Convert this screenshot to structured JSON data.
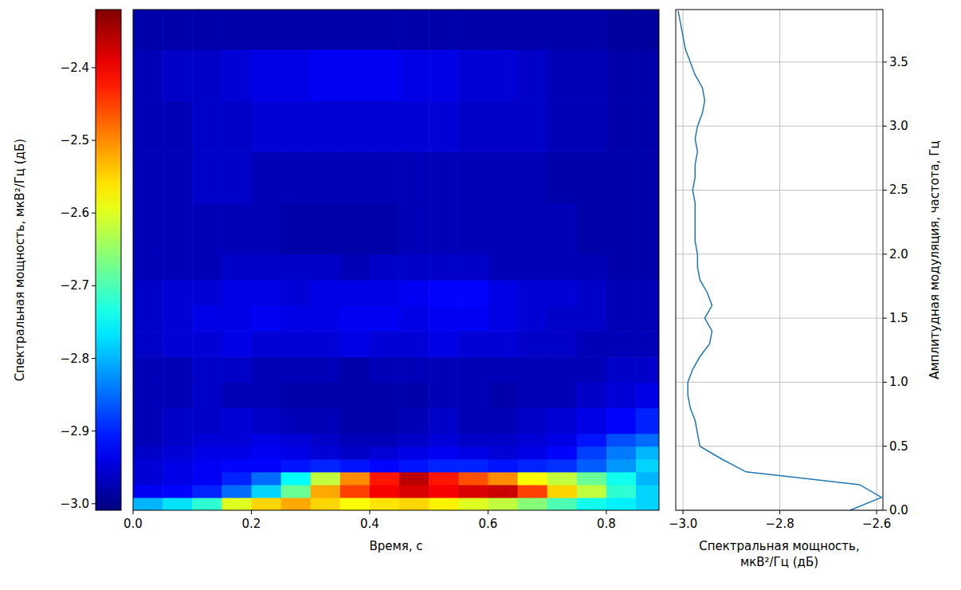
{
  "chart_data": [
    {
      "type": "heatmap",
      "x_label": "Время, с",
      "xlim": [
        0,
        0.889
      ],
      "ylim": [
        0,
        3.91
      ],
      "xticks": [
        {
          "value": 0,
          "label": "0.0"
        },
        0.2,
        0.4,
        0.6,
        0.8
      ],
      "tick_labels": "x",
      "x_bins": [
        0,
        0.05,
        0.1,
        0.15,
        0.2,
        0.25,
        0.3,
        0.35,
        0.4,
        0.45,
        0.5,
        0.55,
        0.6,
        0.65,
        0.7,
        0.75,
        0.8,
        0.85,
        0.889
      ],
      "y_bins": [
        0,
        0.1,
        0.2,
        0.3,
        0.4,
        0.5,
        0.6,
        0.8,
        1.0,
        1.2,
        1.4,
        1.6,
        1.8,
        2.0,
        2.4,
        2.8,
        3.2,
        3.6,
        3.91
      ],
      "cells": [
        [
          -2.8,
          -2.77,
          -2.72,
          -2.6,
          -2.55,
          -2.52,
          -2.55,
          -2.58,
          -2.56,
          -2.55,
          -2.57,
          -2.6,
          -2.62,
          -2.66,
          -2.7,
          -2.74,
          -2.76,
          -2.78
        ],
        [
          -2.93,
          -2.92,
          -2.9,
          -2.85,
          -2.78,
          -2.68,
          -2.52,
          -2.45,
          -2.4,
          -2.38,
          -2.4,
          -2.38,
          -2.37,
          -2.45,
          -2.55,
          -2.62,
          -2.72,
          -2.78
        ],
        [
          -2.95,
          -2.94,
          -2.93,
          -2.9,
          -2.85,
          -2.75,
          -2.62,
          -2.5,
          -2.42,
          -2.36,
          -2.42,
          -2.46,
          -2.5,
          -2.58,
          -2.62,
          -2.68,
          -2.74,
          -2.8
        ],
        [
          -2.95,
          -2.94,
          -2.93,
          -2.92,
          -2.92,
          -2.91,
          -2.9,
          -2.91,
          -2.92,
          -2.91,
          -2.9,
          -2.9,
          -2.91,
          -2.9,
          -2.89,
          -2.86,
          -2.82,
          -2.78
        ],
        [
          -2.96,
          -2.95,
          -2.94,
          -2.94,
          -2.93,
          -2.94,
          -2.95,
          -2.96,
          -2.95,
          -2.94,
          -2.93,
          -2.94,
          -2.95,
          -2.94,
          -2.92,
          -2.88,
          -2.84,
          -2.8
        ],
        [
          -2.97,
          -2.96,
          -2.95,
          -2.95,
          -2.94,
          -2.95,
          -2.96,
          -2.97,
          -2.97,
          -2.96,
          -2.95,
          -2.96,
          -2.96,
          -2.95,
          -2.94,
          -2.91,
          -2.87,
          -2.85
        ],
        [
          -2.97,
          -2.96,
          -2.96,
          -2.95,
          -2.96,
          -2.97,
          -2.97,
          -2.98,
          -2.98,
          -2.97,
          -2.96,
          -2.97,
          -2.97,
          -2.96,
          -2.95,
          -2.94,
          -2.92,
          -2.9
        ],
        [
          -2.97,
          -2.97,
          -2.96,
          -2.97,
          -2.97,
          -2.98,
          -2.98,
          -2.98,
          -2.98,
          -2.98,
          -2.97,
          -2.97,
          -2.98,
          -2.97,
          -2.97,
          -2.96,
          -2.95,
          -2.94
        ],
        [
          -2.97,
          -2.97,
          -2.96,
          -2.96,
          -2.97,
          -2.97,
          -2.97,
          -2.98,
          -2.97,
          -2.97,
          -2.97,
          -2.97,
          -2.97,
          -2.97,
          -2.97,
          -2.97,
          -2.96,
          -2.96
        ],
        [
          -2.96,
          -2.95,
          -2.95,
          -2.94,
          -2.95,
          -2.95,
          -2.95,
          -2.94,
          -2.95,
          -2.95,
          -2.94,
          -2.95,
          -2.95,
          -2.96,
          -2.96,
          -2.97,
          -2.97,
          -2.97
        ],
        [
          -2.96,
          -2.95,
          -2.94,
          -2.94,
          -2.93,
          -2.94,
          -2.94,
          -2.93,
          -2.93,
          -2.94,
          -2.93,
          -2.93,
          -2.94,
          -2.95,
          -2.96,
          -2.96,
          -2.97,
          -2.97
        ],
        [
          -2.96,
          -2.95,
          -2.95,
          -2.94,
          -2.94,
          -2.95,
          -2.94,
          -2.94,
          -2.94,
          -2.93,
          -2.92,
          -2.92,
          -2.94,
          -2.95,
          -2.95,
          -2.96,
          -2.97,
          -2.97
        ],
        [
          -2.97,
          -2.97,
          -2.97,
          -2.96,
          -2.96,
          -2.96,
          -2.96,
          -2.97,
          -2.96,
          -2.96,
          -2.96,
          -2.96,
          -2.97,
          -2.97,
          -2.97,
          -2.97,
          -2.98,
          -2.98
        ],
        [
          -2.97,
          -2.97,
          -2.97,
          -2.97,
          -2.97,
          -2.98,
          -2.98,
          -2.98,
          -2.98,
          -2.97,
          -2.97,
          -2.97,
          -2.97,
          -2.97,
          -2.97,
          -2.98,
          -2.98,
          -2.98
        ],
        [
          -2.97,
          -2.97,
          -2.96,
          -2.96,
          -2.97,
          -2.97,
          -2.97,
          -2.97,
          -2.97,
          -2.97,
          -2.97,
          -2.97,
          -2.97,
          -2.97,
          -2.98,
          -2.98,
          -2.98,
          -2.98
        ],
        [
          -2.97,
          -2.97,
          -2.96,
          -2.96,
          -2.95,
          -2.95,
          -2.95,
          -2.95,
          -2.95,
          -2.95,
          -2.95,
          -2.96,
          -2.96,
          -2.96,
          -2.97,
          -2.97,
          -2.98,
          -2.98
        ],
        [
          -2.97,
          -2.96,
          -2.96,
          -2.95,
          -2.94,
          -2.94,
          -2.93,
          -2.93,
          -2.93,
          -2.94,
          -2.94,
          -2.95,
          -2.95,
          -2.96,
          -2.97,
          -2.97,
          -2.98,
          -2.98
        ],
        [
          -2.98,
          -2.98,
          -2.98,
          -2.98,
          -2.98,
          -2.98,
          -2.98,
          -2.98,
          -2.98,
          -2.98,
          -2.98,
          -2.98,
          -2.98,
          -2.98,
          -2.98,
          -2.98,
          -2.99,
          -2.99
        ]
      ],
      "colorbar": {
        "label": "Спектральная мощность, мкВ²/Гц (дБ)",
        "range": [
          -3.009,
          -2.32
        ],
        "ticks": [
          {
            "value": -3.0,
            "label": "−3.0"
          },
          {
            "value": -2.9,
            "label": "−2.9"
          },
          {
            "value": -2.8,
            "label": "−2.8"
          },
          {
            "value": -2.7,
            "label": "−2.7"
          },
          {
            "value": -2.6,
            "label": "−2.6"
          },
          {
            "value": -2.5,
            "label": "−2.5"
          },
          {
            "value": -2.4,
            "label": "−2.4"
          }
        ]
      }
    },
    {
      "type": "line",
      "orientation": "horizontal",
      "x_label": "Спектральная мощность,\nмкВ²/Гц (дБ)",
      "y_label": "Амплитудная модуляция, частота, Гц",
      "color": "#1f77b4",
      "grid": true,
      "xlim": [
        -3.015,
        -2.587
      ],
      "ylim": [
        0,
        3.91
      ],
      "xticks": [
        {
          "value": -3.0,
          "label": "−3.0"
        },
        {
          "value": -2.8,
          "label": "−2.8"
        },
        {
          "value": -2.6,
          "label": "−2.6"
        }
      ],
      "yticks": [
        {
          "value": 0,
          "label": "0.0"
        },
        0.5,
        {
          "value": 1,
          "label": "1.0"
        },
        1.5,
        {
          "value": 2,
          "label": "2.0"
        },
        2.5,
        {
          "value": 3,
          "label": "3.0"
        },
        3.5
      ],
      "y": [
        0.0,
        0.1,
        0.2,
        0.3,
        0.4,
        0.5,
        0.6,
        0.7,
        0.8,
        0.9,
        1.0,
        1.1,
        1.2,
        1.3,
        1.4,
        1.5,
        1.6,
        1.7,
        1.8,
        1.9,
        2.0,
        2.1,
        2.2,
        2.3,
        2.4,
        2.5,
        2.6,
        2.7,
        2.8,
        2.9,
        3.0,
        3.1,
        3.2,
        3.3,
        3.4,
        3.5,
        3.6,
        3.7,
        3.8,
        3.9
      ],
      "values": [
        -2.655,
        -2.59,
        -2.635,
        -2.87,
        -2.92,
        -2.965,
        -2.97,
        -2.975,
        -2.985,
        -2.99,
        -2.99,
        -2.98,
        -2.965,
        -2.945,
        -2.94,
        -2.955,
        -2.94,
        -2.95,
        -2.965,
        -2.97,
        -2.97,
        -2.975,
        -2.975,
        -2.975,
        -2.975,
        -2.98,
        -2.975,
        -2.975,
        -2.97,
        -2.975,
        -2.97,
        -2.96,
        -2.955,
        -2.96,
        -2.975,
        -2.985,
        -2.995,
        -3.0,
        -3.005,
        -3.01
      ]
    }
  ]
}
